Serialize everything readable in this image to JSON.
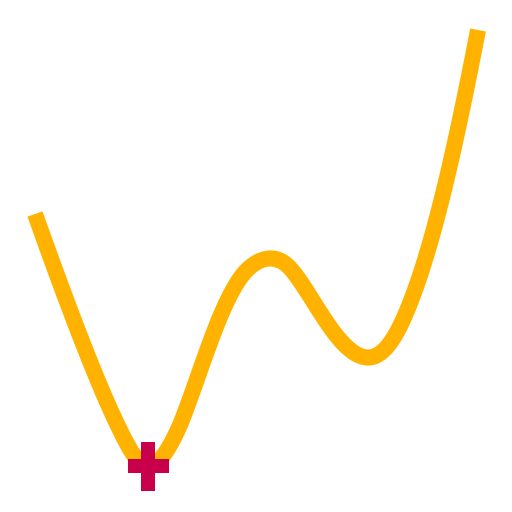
{
  "diagram": {
    "colors": {
      "background": "#ffffff",
      "curve": "#FFB300",
      "marker": "#C8004C"
    },
    "marker": {
      "shape": "plus"
    }
  }
}
